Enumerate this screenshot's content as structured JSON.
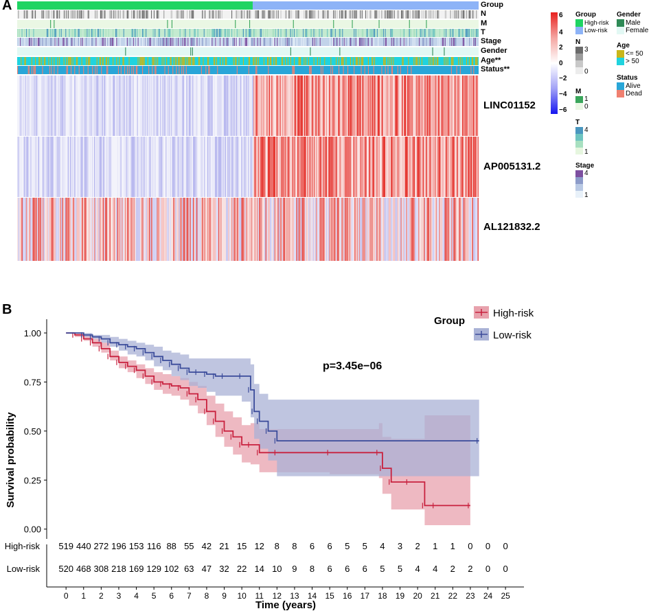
{
  "panels": {
    "a": "A",
    "b": "B"
  },
  "heatmap": {
    "annotation_rows": [
      "Group",
      "N",
      "M",
      "T",
      "Stage",
      "Gender",
      "Age**",
      "Status**"
    ],
    "genes": [
      "LINC01152",
      "AP005131.2",
      "AL121832.2"
    ],
    "colorbar": {
      "ticks": [
        "6",
        "4",
        "2",
        "0",
        "−2",
        "−4",
        "−6"
      ],
      "high": "#e8201e",
      "mid": "#ffffff",
      "low": "#1515f0"
    },
    "legends": {
      "group": {
        "title": "Group",
        "items": [
          "High-risk",
          "Low-risk"
        ],
        "colors": [
          "#1fd462",
          "#8db3f7"
        ]
      },
      "n": {
        "title": "N",
        "labels": [
          "3",
          "0"
        ]
      },
      "m": {
        "title": "M",
        "labels": [
          "1",
          "0"
        ]
      },
      "t": {
        "title": "T",
        "labels": [
          "4",
          "1"
        ]
      },
      "stage": {
        "title": "Stage",
        "labels": [
          "4",
          "1"
        ]
      },
      "gender": {
        "title": "Gender",
        "items": [
          "Male",
          "Female"
        ],
        "colors": [
          "#2e8a56",
          "#e2f8f4"
        ]
      },
      "age": {
        "title": "Age",
        "items": [
          "<= 50",
          "> 50"
        ],
        "colors": [
          "#c9b61a",
          "#20d3de"
        ]
      },
      "status": {
        "title": "Status",
        "items": [
          "Alive",
          "Dead"
        ],
        "colors": [
          "#29a6d8",
          "#f08070"
        ]
      }
    }
  },
  "chart_data": {
    "type": "line",
    "subtype": "kaplan-meier",
    "xlabel": "Time (years)",
    "ylabel": "Survival probability",
    "xlim": [
      0,
      25
    ],
    "ylim": [
      0,
      1
    ],
    "x_ticks": [
      "0",
      "1",
      "2",
      "3",
      "4",
      "5",
      "6",
      "7",
      "8",
      "9",
      "10",
      "11",
      "12",
      "13",
      "14",
      "15",
      "16",
      "17",
      "18",
      "19",
      "20",
      "21",
      "22",
      "23",
      "24",
      "25"
    ],
    "y_ticks": [
      "0.00",
      "0.25",
      "0.50",
      "0.75",
      "1.00"
    ],
    "legend_title": "Group",
    "pvalue": "p=3.45e−06",
    "series": [
      {
        "name": "High-risk",
        "color": "#c8213e",
        "fill": "#e8a2ad",
        "x": [
          0,
          0.5,
          1,
          1.5,
          2,
          2.5,
          3,
          3.5,
          4,
          4.5,
          5,
          5.5,
          6,
          6.5,
          7,
          7.5,
          8,
          8.5,
          9,
          9.5,
          10,
          10.5,
          11,
          12,
          15,
          17.8,
          18,
          18.5,
          19.5,
          20.4,
          21,
          23
        ],
        "y": [
          1.0,
          0.99,
          0.97,
          0.95,
          0.92,
          0.88,
          0.85,
          0.83,
          0.81,
          0.78,
          0.75,
          0.74,
          0.73,
          0.72,
          0.69,
          0.66,
          0.6,
          0.55,
          0.5,
          0.47,
          0.43,
          0.43,
          0.39,
          0.39,
          0.39,
          0.39,
          0.31,
          0.24,
          0.24,
          0.12,
          0.12,
          0.12
        ],
        "lower": [
          1.0,
          0.98,
          0.96,
          0.93,
          0.9,
          0.86,
          0.82,
          0.8,
          0.77,
          0.74,
          0.71,
          0.69,
          0.68,
          0.66,
          0.63,
          0.59,
          0.53,
          0.47,
          0.42,
          0.38,
          0.34,
          0.33,
          0.29,
          0.29,
          0.28,
          0.26,
          0.18,
          0.1,
          0.1,
          0.02,
          0.02,
          0.02
        ],
        "upper": [
          1.0,
          1.0,
          0.99,
          0.97,
          0.95,
          0.91,
          0.88,
          0.86,
          0.84,
          0.82,
          0.8,
          0.79,
          0.78,
          0.77,
          0.75,
          0.73,
          0.68,
          0.64,
          0.6,
          0.57,
          0.53,
          0.54,
          0.51,
          0.51,
          0.51,
          0.54,
          0.47,
          0.46,
          0.46,
          0.58,
          0.58,
          0.58
        ]
      },
      {
        "name": "Low-risk",
        "color": "#3a4b9a",
        "fill": "#a9b2d6",
        "x": [
          0,
          1,
          1.5,
          2,
          2.5,
          3,
          3.5,
          4,
          4.5,
          5,
          5.5,
          6,
          6.5,
          7,
          7.5,
          8,
          8.5,
          9,
          10,
          10.5,
          10.7,
          11,
          11.5,
          12,
          23.5
        ],
        "y": [
          1.0,
          0.99,
          0.98,
          0.97,
          0.95,
          0.94,
          0.93,
          0.92,
          0.9,
          0.88,
          0.86,
          0.84,
          0.82,
          0.8,
          0.8,
          0.79,
          0.78,
          0.78,
          0.78,
          0.71,
          0.6,
          0.55,
          0.5,
          0.45,
          0.45
        ],
        "lower": [
          1.0,
          0.98,
          0.97,
          0.95,
          0.93,
          0.91,
          0.89,
          0.88,
          0.86,
          0.83,
          0.81,
          0.78,
          0.76,
          0.73,
          0.72,
          0.7,
          0.68,
          0.68,
          0.65,
          0.57,
          0.46,
          0.41,
          0.35,
          0.27,
          0.27
        ],
        "upper": [
          1.0,
          1.0,
          0.99,
          0.99,
          0.98,
          0.97,
          0.96,
          0.95,
          0.94,
          0.93,
          0.91,
          0.9,
          0.89,
          0.87,
          0.87,
          0.87,
          0.87,
          0.87,
          0.87,
          0.84,
          0.74,
          0.69,
          0.66,
          0.66,
          0.66
        ]
      }
    ],
    "risk_table": {
      "years": [
        "0",
        "1",
        "2",
        "3",
        "4",
        "5",
        "6",
        "7",
        "8",
        "9",
        "10",
        "11",
        "12",
        "13",
        "14",
        "15",
        "16",
        "17",
        "18",
        "19",
        "20",
        "21",
        "22",
        "23",
        "24",
        "25"
      ],
      "rows": [
        {
          "name": "High-risk",
          "values": [
            "519",
            "440",
            "272",
            "196",
            "153",
            "116",
            "88",
            "55",
            "42",
            "21",
            "15",
            "12",
            "8",
            "8",
            "6",
            "6",
            "5",
            "5",
            "4",
            "3",
            "2",
            "1",
            "1",
            "0",
            "0",
            "0"
          ]
        },
        {
          "name": "Low-risk",
          "values": [
            "520",
            "468",
            "308",
            "218",
            "169",
            "129",
            "102",
            "63",
            "47",
            "32",
            "22",
            "14",
            "10",
            "9",
            "8",
            "6",
            "6",
            "6",
            "5",
            "5",
            "4",
            "4",
            "2",
            "2",
            "0",
            "0"
          ]
        }
      ]
    }
  }
}
